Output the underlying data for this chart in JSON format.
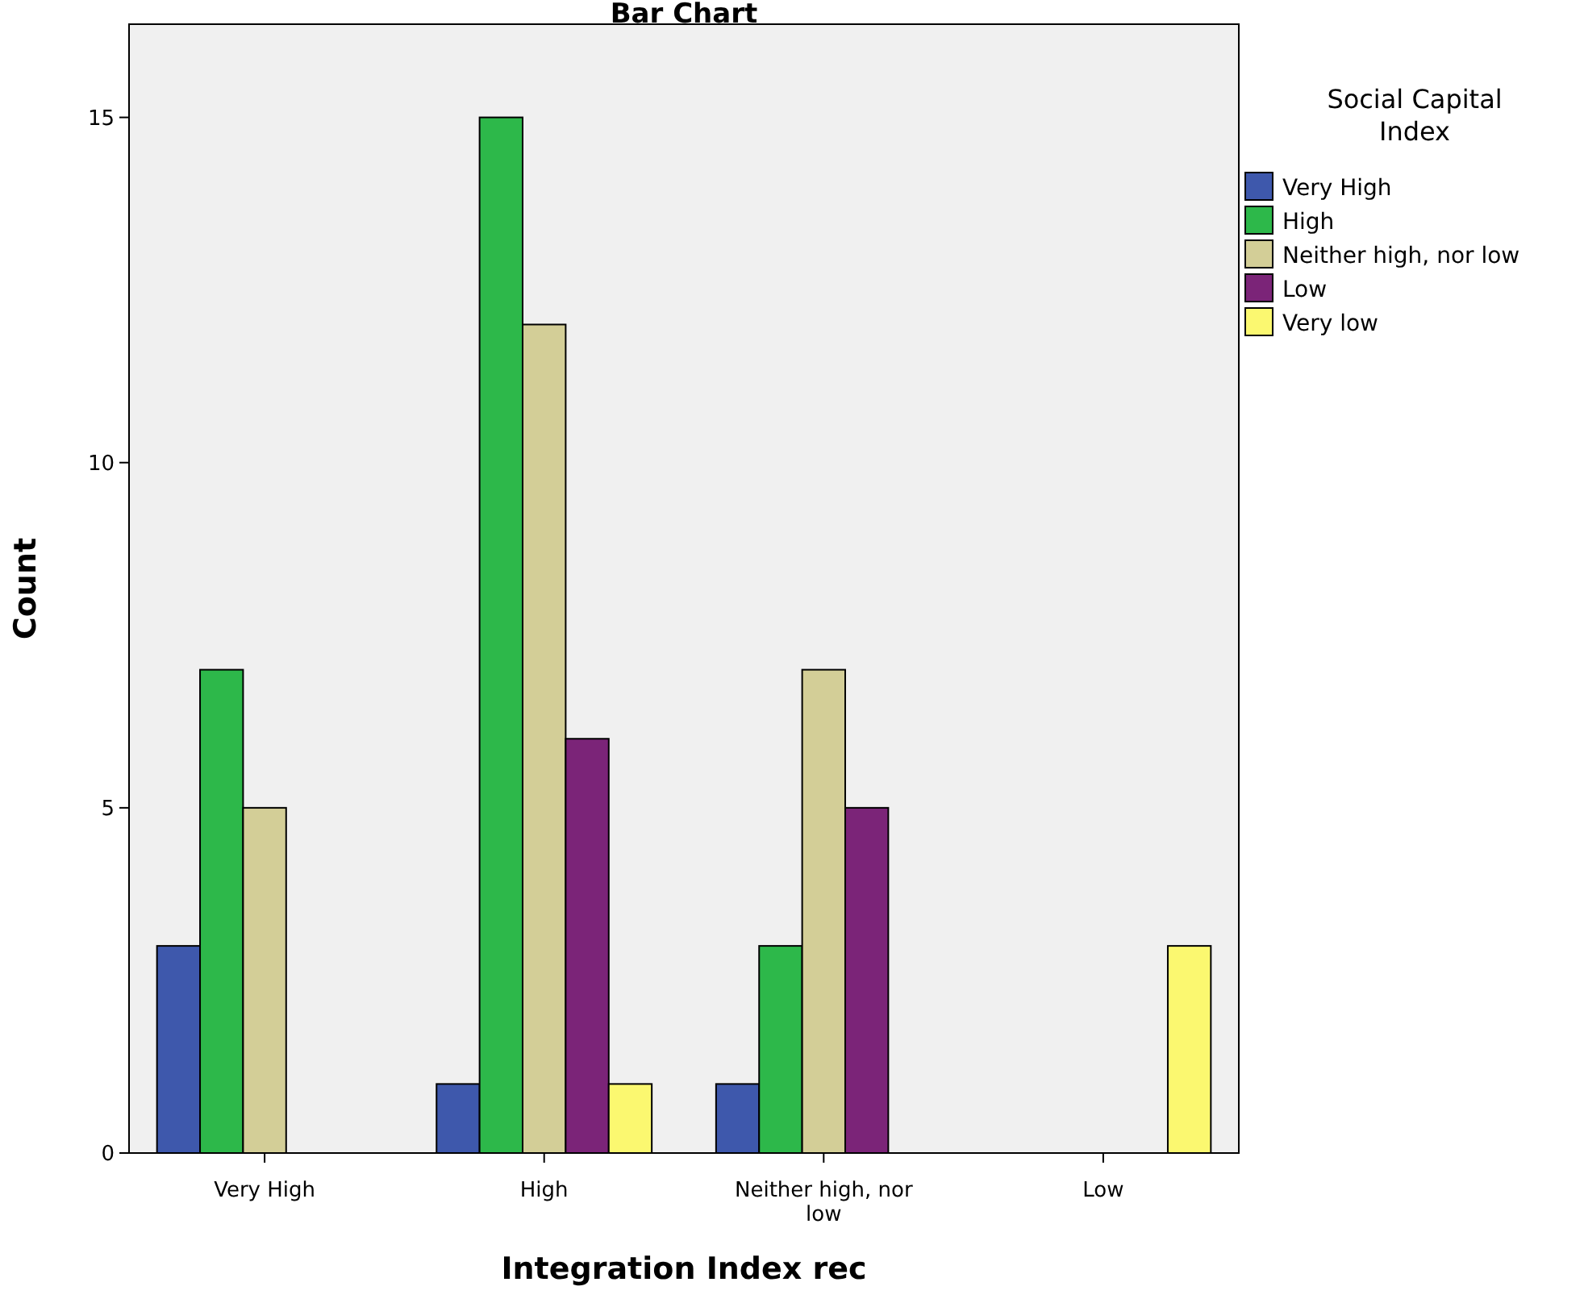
{
  "chart_data": {
    "type": "bar",
    "title": "Bar Chart",
    "xlabel": "Integration Index rec",
    "ylabel": "Count",
    "legend_title": "Social Capital Index",
    "legend": "right",
    "categories": [
      "Very High",
      "High",
      "Neither high, nor low",
      "Low"
    ],
    "series": [
      {
        "name": "Very High",
        "color": "#3e58ac",
        "values": [
          3,
          1,
          1,
          null
        ]
      },
      {
        "name": "High",
        "color": "#2db84a",
        "values": [
          7,
          15,
          3,
          null
        ]
      },
      {
        "name": "Neither high, nor low",
        "color": "#d3ce97",
        "values": [
          5,
          12,
          7,
          null
        ]
      },
      {
        "name": "Low",
        "color": "#7b2478",
        "values": [
          null,
          6,
          5,
          null
        ]
      },
      {
        "name": "Very low",
        "color": "#fbf870",
        "values": [
          null,
          1,
          null,
          3
        ]
      }
    ],
    "ylim": [
      0,
      16.35
    ],
    "yticks": [
      0,
      5,
      10,
      15
    ],
    "grid": false
  }
}
